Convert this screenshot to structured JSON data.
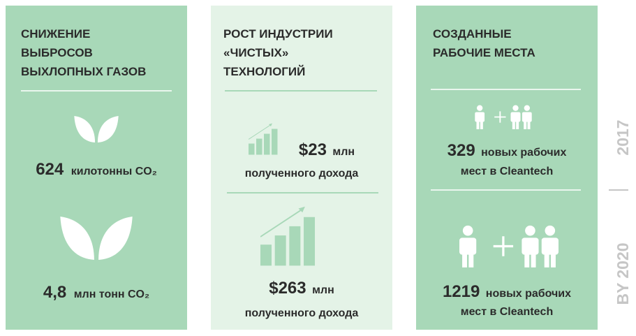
{
  "panels": [
    {
      "title": [
        "СНИЖЕНИЕ",
        "ВЫБРОСОВ",
        "ВЫХЛОПНЫХ ГАЗОВ"
      ],
      "items": [
        {
          "value": "624",
          "unit": "килотонны CO₂"
        },
        {
          "value": "4,8",
          "unit": "млн тонн CO₂"
        }
      ]
    },
    {
      "title": [
        "РОСТ ИНДУСТРИИ",
        "«ЧИСТЫХ»",
        "ТЕХНОЛОГИЙ"
      ],
      "items": [
        {
          "value": "$23",
          "unit": "млн",
          "caption": "полученного дохода"
        },
        {
          "value": "$263",
          "unit": "млн",
          "caption": "полученного дохода"
        }
      ]
    },
    {
      "title": [
        "СОЗДАННЫЕ",
        "РАБОЧИЕ МЕСТА"
      ],
      "items": [
        {
          "value": "329",
          "unit": "новых рабочих",
          "caption": "мест в Cleantech"
        },
        {
          "value": "1219",
          "unit": "новых рабочих",
          "caption": "мест в Cleantech"
        }
      ]
    }
  ],
  "side": [
    "2017",
    "BY 2020"
  ]
}
